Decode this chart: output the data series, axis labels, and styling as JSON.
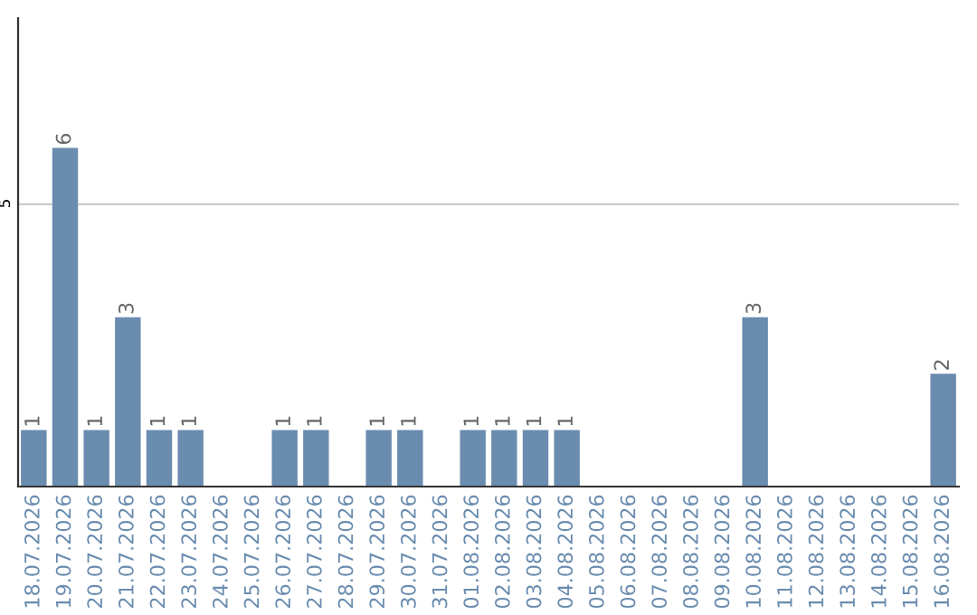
{
  "chart_data": {
    "type": "bar",
    "categories": [
      "18.07.2026",
      "19.07.2026",
      "20.07.2026",
      "21.07.2026",
      "22.07.2026",
      "23.07.2026",
      "24.07.2026",
      "25.07.2026",
      "26.07.2026",
      "27.07.2026",
      "28.07.2026",
      "29.07.2026",
      "30.07.2026",
      "31.07.2026",
      "01.08.2026",
      "02.08.2026",
      "03.08.2026",
      "04.08.2026",
      "05.08.2026",
      "06.08.2026",
      "07.08.2026",
      "08.08.2026",
      "09.08.2026",
      "10.08.2026",
      "11.08.2026",
      "12.08.2026",
      "13.08.2026",
      "14.08.2026",
      "15.08.2026",
      "16.08.2026"
    ],
    "values": [
      1,
      6,
      1,
      3,
      1,
      1,
      0,
      0,
      1,
      1,
      0,
      1,
      1,
      0,
      1,
      1,
      1,
      1,
      0,
      0,
      0,
      0,
      0,
      3,
      0,
      0,
      0,
      0,
      0,
      2
    ],
    "value_labels": [
      "1",
      "6",
      "1",
      "3",
      "1",
      "1",
      null,
      null,
      "1",
      "1",
      null,
      "1",
      "1",
      null,
      "1",
      "1",
      "1",
      "1",
      null,
      null,
      null,
      null,
      null,
      "3",
      null,
      null,
      null,
      null,
      null,
      "2"
    ],
    "color": "#6a8caf",
    "ylim": [
      0,
      8.3
    ],
    "yticks": [
      5
    ],
    "grid": "y"
  }
}
